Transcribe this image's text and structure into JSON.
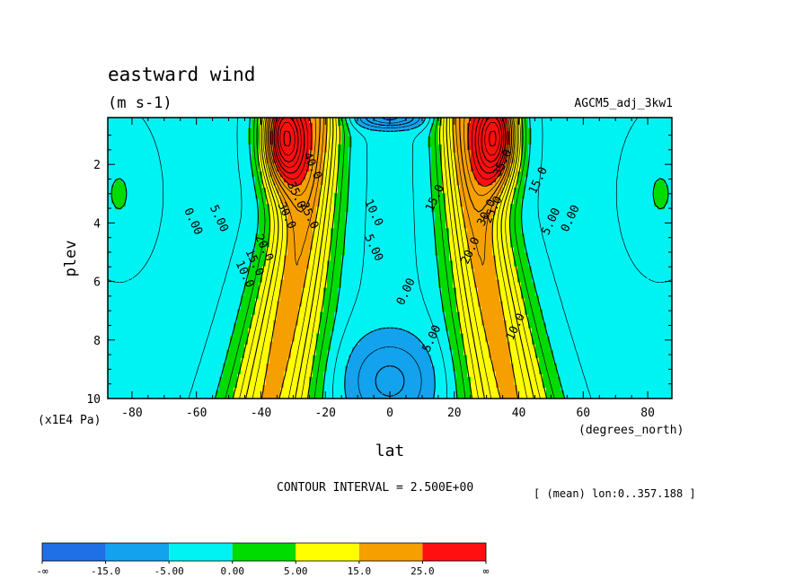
{
  "chart_data": {
    "type": "heatmap",
    "title": "eastward wind",
    "units": "(m s-1)",
    "run_label": "AGCM5_adj_3kw1",
    "xlabel": "lat",
    "x_units": "(degrees_north)",
    "ylabel": "plev",
    "y_units": "(x1E4 Pa)",
    "xlim": [
      -87.5,
      87.5
    ],
    "ylim": [
      10,
      0.4
    ],
    "x_ticks": [
      {
        "value": -80,
        "label": "-80"
      },
      {
        "value": -60,
        "label": "-60"
      },
      {
        "value": -40,
        "label": "-40"
      },
      {
        "value": -20,
        "label": "-20"
      },
      {
        "value": 0,
        "label": "0"
      },
      {
        "value": 20,
        "label": "20"
      },
      {
        "value": 40,
        "label": "40"
      },
      {
        "value": 60,
        "label": "60"
      },
      {
        "value": 80,
        "label": "80"
      }
    ],
    "y_ticks": [
      {
        "value": 2,
        "label": "2"
      },
      {
        "value": 4,
        "label": "4"
      },
      {
        "value": 6,
        "label": "6"
      },
      {
        "value": 8,
        "label": "8"
      },
      {
        "value": 10,
        "label": "10"
      }
    ],
    "contour_interval_text": "CONTOUR INTERVAL = 2.500E+00",
    "mean_note": "[ (mean) lon:0..357.188 ]",
    "levels": [
      -15,
      -5,
      0,
      5,
      15,
      25
    ],
    "colorbar": {
      "colors": [
        "#1f6fe6",
        "#12a2ee",
        "#00f3f3",
        "#00db00",
        "#ffff00",
        "#f5a000",
        "#ff0f0f"
      ],
      "labels": [
        "-∞",
        "-15.0",
        "-5.00",
        "0.00",
        "5.00",
        "15.0",
        "25.0",
        "∞"
      ]
    },
    "jets": [
      {
        "lat": -33,
        "plev": 1.0,
        "peak": 50
      },
      {
        "lat": 33,
        "plev": 1.0,
        "peak": 50
      }
    ],
    "contour_labels": [
      {
        "lat": -62,
        "plev": 4.0,
        "text": "0.00"
      },
      {
        "lat": -54,
        "plev": 3.9,
        "text": "5.00"
      },
      {
        "lat": -46,
        "plev": 5.8,
        "text": "10.0"
      },
      {
        "lat": -43,
        "plev": 5.4,
        "text": "15.0"
      },
      {
        "lat": -40,
        "plev": 4.9,
        "text": "20.0"
      },
      {
        "lat": -33,
        "plev": 3.8,
        "text": "30.0"
      },
      {
        "lat": -30,
        "plev": 3.1,
        "text": "35.0"
      },
      {
        "lat": -26,
        "plev": 3.8,
        "text": "25.0"
      },
      {
        "lat": -25,
        "plev": 2.1,
        "text": "40.0"
      },
      {
        "lat": -6,
        "plev": 3.7,
        "text": "10.0"
      },
      {
        "lat": -6,
        "plev": 4.9,
        "text": "5.00"
      },
      {
        "lat": 6,
        "plev": 6.4,
        "text": "0.00"
      },
      {
        "lat": 14,
        "plev": 8.0,
        "text": "5.00"
      },
      {
        "lat": 15,
        "plev": 3.2,
        "text": "15.0"
      },
      {
        "lat": 26,
        "plev": 5.0,
        "text": "20.0"
      },
      {
        "lat": 31,
        "plev": 3.7,
        "text": "30.0"
      },
      {
        "lat": 33,
        "plev": 3.6,
        "text": "25.0"
      },
      {
        "lat": 36,
        "plev": 2.0,
        "text": "35.0"
      },
      {
        "lat": 40,
        "plev": 7.6,
        "text": "10.0"
      },
      {
        "lat": 47,
        "plev": 2.6,
        "text": "15.0"
      },
      {
        "lat": 51,
        "plev": 4.0,
        "text": "5.00"
      },
      {
        "lat": 57,
        "plev": 3.9,
        "text": "0.00"
      }
    ]
  }
}
